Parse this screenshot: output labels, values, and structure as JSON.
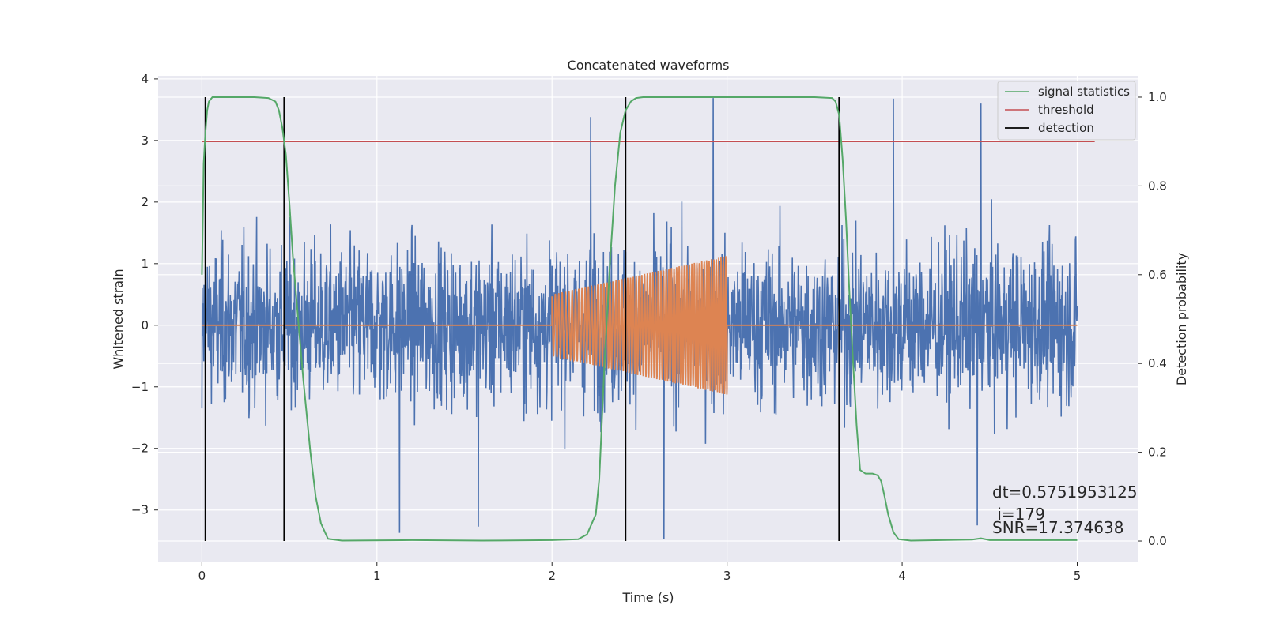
{
  "chart_data": {
    "type": "line",
    "title": "Concatenated waveforms",
    "xlabel": "Time (s)",
    "ylabel_left": "Whitened strain",
    "ylabel_right": "Detection probability",
    "xlim": [
      -0.25,
      5.35
    ],
    "ylim_left": [
      -3.85,
      4.05
    ],
    "ylim_right": [
      -0.048,
      1.048
    ],
    "x_ticks": [
      0,
      1,
      2,
      3,
      4,
      5
    ],
    "y_ticks_left": [
      -3,
      -2,
      -1,
      0,
      1,
      2,
      3,
      4
    ],
    "y_ticks_right": [
      0.0,
      0.2,
      0.4,
      0.6,
      0.8,
      1.0
    ],
    "grid": true,
    "background": "#e9e9f1",
    "legend_position": "top-right",
    "series": [
      {
        "name": "",
        "axis": "left",
        "kind": "noise",
        "color": "#4c72b0",
        "x_range": [
          0,
          5
        ],
        "envelope": [
          -2.2,
          2.5
        ],
        "peaks": [
          [
            0.0,
            2.47
          ],
          [
            0.0,
            -1.35
          ],
          [
            1.13,
            -3.37
          ],
          [
            1.58,
            -3.27
          ],
          [
            2.22,
            3.38
          ],
          [
            2.64,
            -3.47
          ],
          [
            2.92,
            3.69
          ],
          [
            3.95,
            3.68
          ],
          [
            4.45,
            3.6
          ],
          [
            4.43,
            -3.25
          ]
        ]
      },
      {
        "name": "",
        "axis": "left",
        "kind": "chirp",
        "color": "#dd8452",
        "baseline": 0,
        "x_range": [
          0,
          5
        ],
        "chirp_start": 2.0,
        "chirp_end": 3.0,
        "amp_start": 0.5,
        "amp_end": 1.13
      },
      {
        "name": "signal statistics",
        "axis": "right",
        "color": "#55a868",
        "x": [
          0.0,
          0.01,
          0.02,
          0.03,
          0.04,
          0.06,
          0.08,
          0.12,
          0.3,
          0.38,
          0.42,
          0.44,
          0.46,
          0.48,
          0.5,
          0.52,
          0.55,
          0.58,
          0.62,
          0.65,
          0.68,
          0.72,
          0.8,
          1.2,
          1.6,
          2.0,
          2.15,
          2.2,
          2.25,
          2.27,
          2.3,
          2.33,
          2.36,
          2.39,
          2.42,
          2.45,
          2.48,
          2.52,
          2.6,
          3.5,
          3.6,
          3.62,
          3.64,
          3.66,
          3.68,
          3.7,
          3.72,
          3.74,
          3.76,
          3.79,
          3.83,
          3.86,
          3.88,
          3.9,
          3.92,
          3.95,
          3.98,
          4.05,
          4.4,
          4.45,
          4.5,
          5.0
        ],
        "y": [
          0.6,
          0.85,
          0.92,
          0.97,
          0.99,
          1.0,
          1.0,
          1.0,
          1.0,
          0.998,
          0.99,
          0.97,
          0.93,
          0.87,
          0.76,
          0.64,
          0.5,
          0.36,
          0.2,
          0.1,
          0.04,
          0.005,
          0.001,
          0.002,
          0.001,
          0.002,
          0.004,
          0.015,
          0.06,
          0.14,
          0.4,
          0.62,
          0.8,
          0.92,
          0.97,
          0.99,
          0.998,
          1.0,
          1.0,
          1.0,
          0.998,
          0.99,
          0.96,
          0.86,
          0.72,
          0.55,
          0.4,
          0.26,
          0.16,
          0.152,
          0.152,
          0.148,
          0.135,
          0.1,
          0.06,
          0.02,
          0.004,
          0.001,
          0.003,
          0.006,
          0.002,
          0.002
        ]
      },
      {
        "name": "threshold",
        "axis": "right",
        "color": "#c44e52",
        "x": [
          0,
          5.1
        ],
        "y": [
          0.9,
          0.9
        ]
      },
      {
        "name": "detection",
        "axis": "right",
        "color": "#000000",
        "kind": "vlines",
        "x": [
          0.02,
          0.47,
          2.42,
          3.64
        ],
        "y_range": [
          0.0,
          1.0
        ]
      }
    ],
    "annotations": {
      "dt": "dt=0.5751953125",
      "i": " i=179",
      "snr": "SNR=17.374638"
    }
  }
}
